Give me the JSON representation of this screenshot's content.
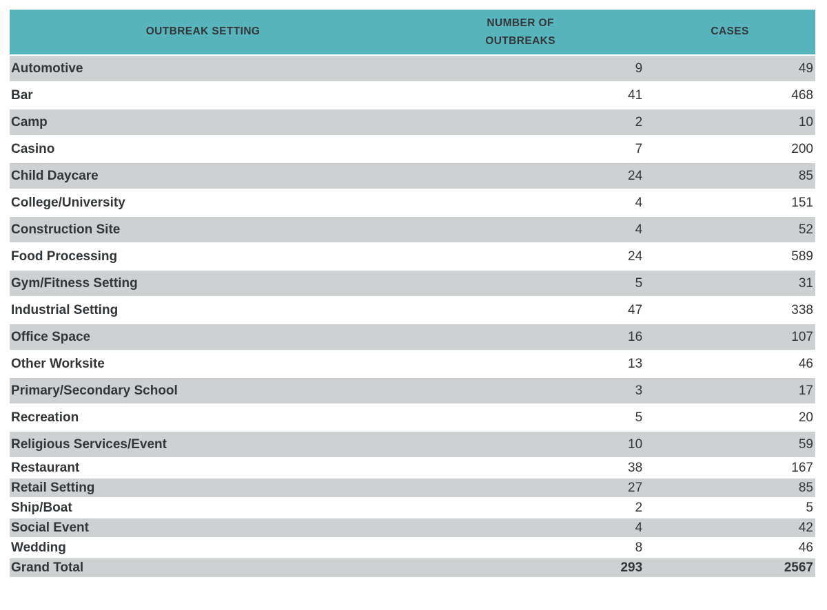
{
  "theme": {
    "header_bg": "#58b4bc",
    "row_alt_bg": "#ced1d1",
    "row_bg": "#ffffff",
    "text_color": "#333638"
  },
  "chart_data": {
    "type": "table",
    "title": "",
    "columns": [
      "OUTBREAK SETTING",
      "NUMBER OF OUTBREAKS",
      "CASES"
    ],
    "rows": [
      {
        "setting": "Automotive",
        "outbreaks": 9,
        "cases": 49
      },
      {
        "setting": "Bar",
        "outbreaks": 41,
        "cases": 468
      },
      {
        "setting": "Camp",
        "outbreaks": 2,
        "cases": 10
      },
      {
        "setting": "Casino",
        "outbreaks": 7,
        "cases": 200
      },
      {
        "setting": "Child Daycare",
        "outbreaks": 24,
        "cases": 85
      },
      {
        "setting": "College/University",
        "outbreaks": 4,
        "cases": 151
      },
      {
        "setting": "Construction Site",
        "outbreaks": 4,
        "cases": 52
      },
      {
        "setting": "Food Processing",
        "outbreaks": 24,
        "cases": 589
      },
      {
        "setting": "Gym/Fitness Setting",
        "outbreaks": 5,
        "cases": 31
      },
      {
        "setting": "Industrial Setting",
        "outbreaks": 47,
        "cases": 338
      },
      {
        "setting": "Office Space",
        "outbreaks": 16,
        "cases": 107
      },
      {
        "setting": "Other Worksite",
        "outbreaks": 13,
        "cases": 46
      },
      {
        "setting": "Primary/Secondary School",
        "outbreaks": 3,
        "cases": 17
      },
      {
        "setting": "Recreation",
        "outbreaks": 5,
        "cases": 20
      },
      {
        "setting": "Religious Services/Event",
        "outbreaks": 10,
        "cases": 59
      },
      {
        "setting": "Restaurant",
        "outbreaks": 38,
        "cases": 167
      },
      {
        "setting": "Retail Setting",
        "outbreaks": 27,
        "cases": 85
      },
      {
        "setting": "Ship/Boat",
        "outbreaks": 2,
        "cases": 5
      },
      {
        "setting": "Social Event",
        "outbreaks": 4,
        "cases": 42
      },
      {
        "setting": "Wedding",
        "outbreaks": 8,
        "cases": 46
      }
    ],
    "grand_total": {
      "setting": "Grand Total",
      "outbreaks": 293,
      "cases": 2567
    }
  }
}
